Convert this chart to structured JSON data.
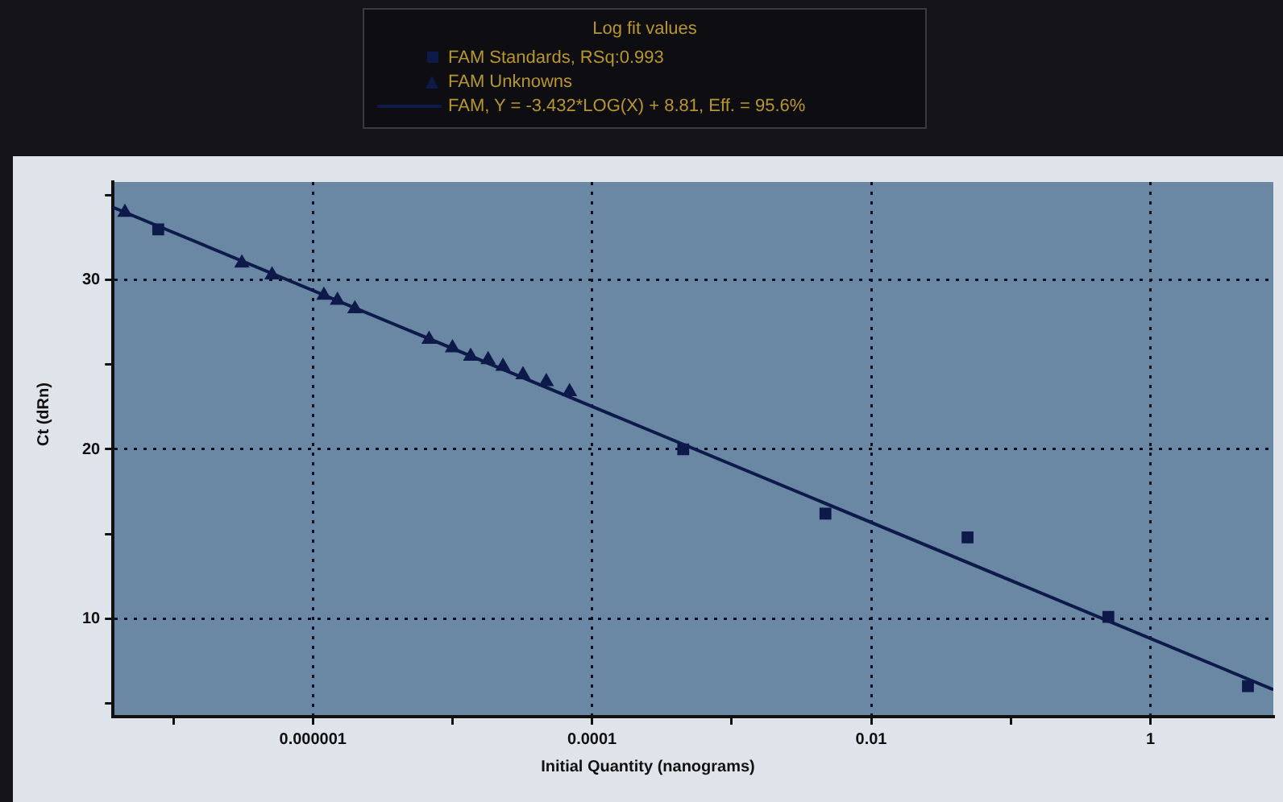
{
  "chart_data": {
    "type": "scatter",
    "legend_title": "Log fit values",
    "xlabel": "Initial Quantity (nanograms)",
    "ylabel": "Ct (dRn)",
    "log": "x",
    "grid": true,
    "legend": "top",
    "xlim": [
      3.7e-08,
      7.6
    ],
    "xticks": [
      {
        "value": 1e-07,
        "label": null
      },
      {
        "value": 1e-06,
        "label": "0.000001"
      },
      {
        "value": 1e-05,
        "label": null
      },
      {
        "value": 0.0001,
        "label": "0.0001"
      },
      {
        "value": 0.001,
        "label": null
      },
      {
        "value": 0.01,
        "label": "0.01"
      },
      {
        "value": 0.1,
        "label": null
      },
      {
        "value": 1,
        "label": "1"
      }
    ],
    "ylim": [
      4.2,
      35.8
    ],
    "yticks": [
      {
        "value": 5,
        "label": null
      },
      10,
      {
        "value": 15,
        "label": null
      },
      20,
      {
        "value": 25,
        "label": null
      },
      30,
      {
        "value": 35,
        "label": null
      }
    ],
    "series": [
      {
        "name": "FAM Standards, RSq:0.993",
        "marker": "square",
        "color": "#0d1a4a",
        "x": [
          7.8e-08,
          0.00045,
          0.0047,
          0.049,
          0.5,
          5.0
        ],
        "values": [
          33.0,
          20.0,
          16.2,
          14.8,
          10.1,
          6.0
        ]
      },
      {
        "name": "FAM Unknowns",
        "marker": "triangle",
        "color": "#0d1a4a",
        "x": [
          4.5e-08,
          3.1e-07,
          5.1e-07,
          1.2e-06,
          1.5e-06,
          2e-06,
          6.8e-06,
          1e-05,
          1.35e-05,
          1.8e-05,
          2.3e-05,
          3.2e-05,
          4.7e-05,
          6.9e-05
        ],
        "values": [
          34.0,
          31.0,
          30.3,
          29.1,
          28.8,
          28.3,
          26.5,
          26.0,
          25.5,
          25.3,
          24.9,
          24.4,
          24.0,
          23.4
        ]
      },
      {
        "name": "FAM, Y = -3.432*LOG(X) + 8.81, Eff. = 95.6%",
        "type": "line",
        "marker": "none",
        "line_style": "solid",
        "color": "#0d1a4a",
        "x": [
          3.7e-08,
          7.6
        ],
        "values": [
          34.3,
          5.8
        ]
      }
    ]
  }
}
